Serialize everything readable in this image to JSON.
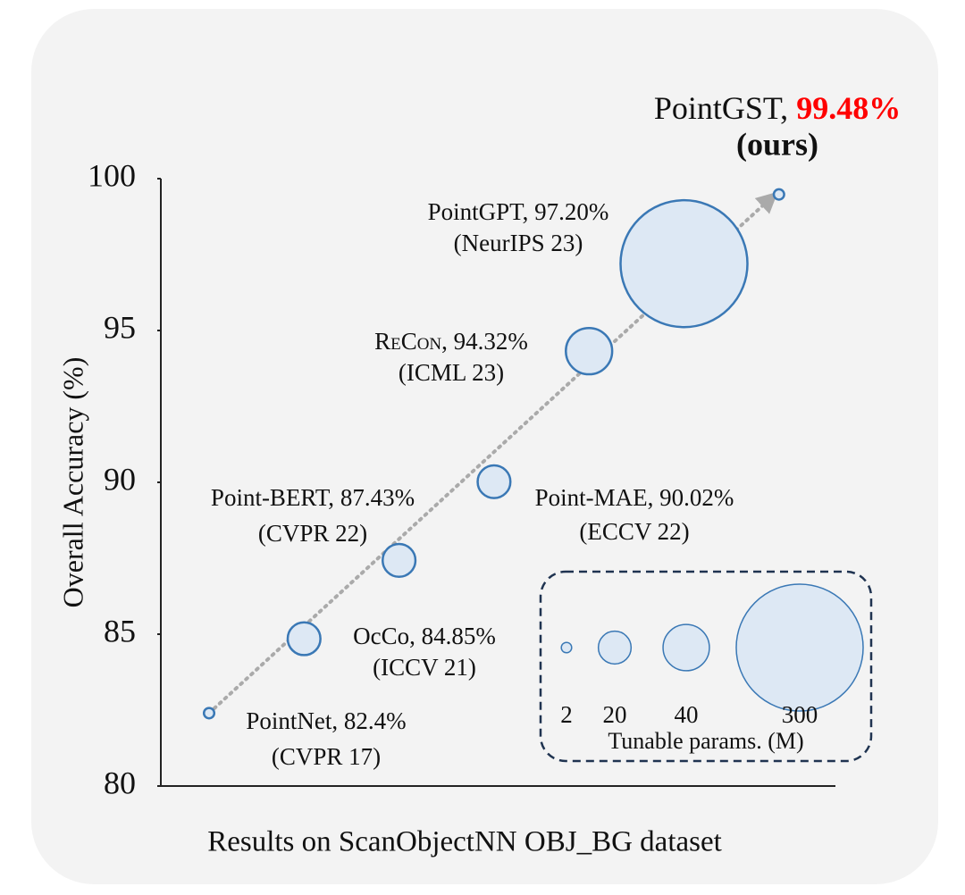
{
  "chart_data": {
    "type": "bubble",
    "xlabel": "Results on ScanObjectNN OBJ_BG dataset",
    "ylabel": "Overall Accuracy (%)",
    "categories": [
      "PointNet,",
      "OcCo,",
      "Point-BERT,",
      "Point-MAE,",
      "ReCon,",
      "PointGPT,",
      "PointGST,"
    ],
    "venues": [
      "(CVPR 17)",
      "(ICCV 21)",
      "(CVPR 22)",
      "(ECCV 22)",
      "(ICML 23)",
      "(NeurIPS 23)",
      "(ours)"
    ],
    "values": [
      82.4,
      84.85,
      87.43,
      90.02,
      94.32,
      97.2,
      99.48
    ],
    "value_labels": [
      "82.4%",
      "84.85%",
      "87.43%",
      "90.02%",
      "94.32%",
      "97.20%",
      "99.48%"
    ],
    "sizes": [
      2,
      20,
      20,
      20,
      40,
      300,
      2
    ],
    "color": "#dde8f4",
    "edge_color": "#3a78b5",
    "highlight_color": "#ff0000",
    "ylim": [
      80,
      100
    ],
    "yticks": [
      80,
      85,
      90,
      95,
      100
    ],
    "size_legend": {
      "title": "Tunable params. (M)",
      "sizes": [
        2,
        20,
        40,
        300
      ]
    }
  }
}
